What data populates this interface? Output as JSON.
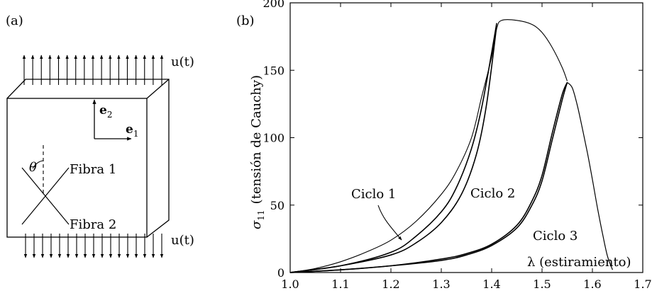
{
  "panel_a": {
    "label": "(a)",
    "load_top": "u(t)",
    "load_bottom": "u(t)",
    "axis_e1": "e",
    "axis_e1_sub": "1",
    "axis_e2": "e",
    "axis_e2_sub": "2",
    "angle": "θ",
    "fiber_1": "Fibra 1",
    "fiber_2": "Fibra 2"
  },
  "panel_b": {
    "label": "(b)"
  },
  "chart_data": {
    "type": "line",
    "ylabel_symbol": "σ",
    "ylabel_sub": "11",
    "ylabel_text": "(tensión de Cauchy)",
    "xlabel": "λ (estiramiento)",
    "xlim": [
      1.0,
      1.7
    ],
    "ylim": [
      0,
      200
    ],
    "xticks": [
      "1.0",
      "1.1",
      "1.2",
      "1.3",
      "1.4",
      "1.5",
      "1.6",
      "1.7"
    ],
    "yticks": [
      "0",
      "50",
      "100",
      "150",
      "200"
    ],
    "grid": false,
    "annotations": [
      "Ciclo 1",
      "Ciclo 2",
      "Ciclo 3"
    ],
    "series": [
      {
        "x": [
          1.0,
          1.05,
          1.1,
          1.15,
          1.2,
          1.25,
          1.3,
          1.33,
          1.36,
          1.38,
          1.4,
          1.41,
          1.42,
          1.45,
          1.48,
          1.5,
          1.52,
          1.54,
          1.55
        ],
        "y": [
          0,
          3,
          8,
          15,
          24,
          38,
          58,
          75,
          100,
          130,
          160,
          181,
          187,
          187,
          184,
          178,
          167,
          152,
          142
        ]
      },
      {
        "x": [
          1.0,
          1.1,
          1.2,
          1.25,
          1.3,
          1.33,
          1.36,
          1.38,
          1.4,
          1.41
        ],
        "y": [
          0,
          5,
          15,
          27,
          45,
          63,
          92,
          122,
          163,
          185
        ]
      },
      {
        "x": [
          1.0,
          1.1,
          1.2,
          1.25,
          1.3,
          1.34,
          1.37,
          1.39,
          1.41
        ],
        "y": [
          0,
          5,
          13,
          22,
          37,
          58,
          88,
          125,
          183
        ]
      },
      {
        "x": [
          1.0,
          1.1,
          1.2,
          1.3,
          1.35,
          1.4,
          1.45,
          1.48,
          1.5,
          1.52,
          1.54,
          1.55
        ],
        "y": [
          0,
          2,
          5,
          9,
          13,
          20,
          33,
          50,
          68,
          98,
          128,
          141
        ]
      },
      {
        "x": [
          1.0,
          1.1,
          1.2,
          1.3,
          1.35,
          1.4,
          1.45,
          1.48,
          1.5,
          1.52,
          1.54,
          1.55
        ],
        "y": [
          0,
          2,
          5,
          10,
          14,
          21,
          35,
          53,
          72,
          103,
          132,
          141
        ]
      },
      {
        "x": [
          1.55,
          1.56,
          1.57,
          1.58,
          1.59,
          1.6,
          1.61,
          1.62,
          1.63,
          1.64
        ],
        "y": [
          141,
          137,
          124,
          107,
          89,
          69,
          48,
          29,
          12,
          2
        ]
      }
    ]
  }
}
